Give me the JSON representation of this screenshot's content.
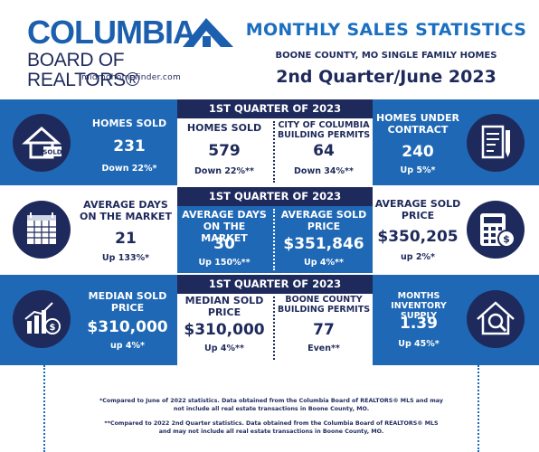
{
  "header": {
    "logo_main": "COLUMBIA",
    "logo_sub": "BOARD OF REALTORS®",
    "logo_url": "midmohomefinder.com",
    "title": "MONTHLY SALES STATISTICS",
    "subtitle": "BOONE COUNTY, MO SINGLE FAMILY HOMES",
    "period": "2nd Quarter/June 2023"
  },
  "row1": {
    "left": {
      "label": "HOMES SOLD",
      "value": "231",
      "change": "Down  22%*",
      "icon": "house-sold-icon"
    },
    "quarter_bar": "1ST QUARTER OF 2023",
    "center_a": {
      "label": "HOMES SOLD",
      "value": "579",
      "change": "Down 22%**"
    },
    "center_b": {
      "label": "CITY OF COLUMBIA BUILDING PERMITS",
      "value": "64",
      "change": "Down 34%**"
    },
    "right": {
      "label": "HOMES UNDER CONTRACT",
      "value": "240",
      "change": "Up 5%*",
      "icon": "contract-pen-icon"
    }
  },
  "row2": {
    "left": {
      "label": "AVERAGE DAYS ON THE MARKET",
      "value": "21",
      "change": "Up 133%*",
      "icon": "calendar-icon"
    },
    "quarter_bar": "1ST QUARTER OF 2023",
    "center_a": {
      "label": "AVERAGE DAYS ON THE MARKET",
      "value": "30",
      "change": "Up 150%**"
    },
    "center_b": {
      "label": "AVERAGE SOLD PRICE",
      "value": "$351,846",
      "change": "Up 4%**"
    },
    "right": {
      "label": "AVERAGE SOLD PRICE",
      "value": "$350,205",
      "change": "up 2%*",
      "icon": "calculator-dollar-icon"
    }
  },
  "row3": {
    "left": {
      "label": "MEDIAN SOLD PRICE",
      "value": "$310,000",
      "change": "up 4%*",
      "icon": "bar-chart-dollar-icon"
    },
    "quarter_bar": "1ST QUARTER OF 2023",
    "center_a": {
      "label": "MEDIAN SOLD PRICE",
      "value": "$310,000",
      "change": "Up 4%**"
    },
    "center_b": {
      "label": "BOONE COUNTY BUILDING PERMITS",
      "value": "77",
      "change": "Even**"
    },
    "right": {
      "label": "MONTHS INVENTORY SUPPLY",
      "value": "1.39",
      "change": "Up 45%*",
      "icon": "house-magnifier-icon"
    }
  },
  "footnotes": {
    "note1": "*Compared to June of 2022 statistics. Data obtained from the  Columbia Board of REALTORS® MLS and may not include all real estate transactions in Boone County, MO.",
    "note2": "**Compared to 2022 2nd Quarter statistics. Data obtained from the Columbia Board of REALTORS® MLS and may not include all real estate transactions in Boone County, MO."
  },
  "colors": {
    "brand_blue": "#1f68b5",
    "navy": "#1f2a5c",
    "title_blue": "#1b6fc0"
  }
}
